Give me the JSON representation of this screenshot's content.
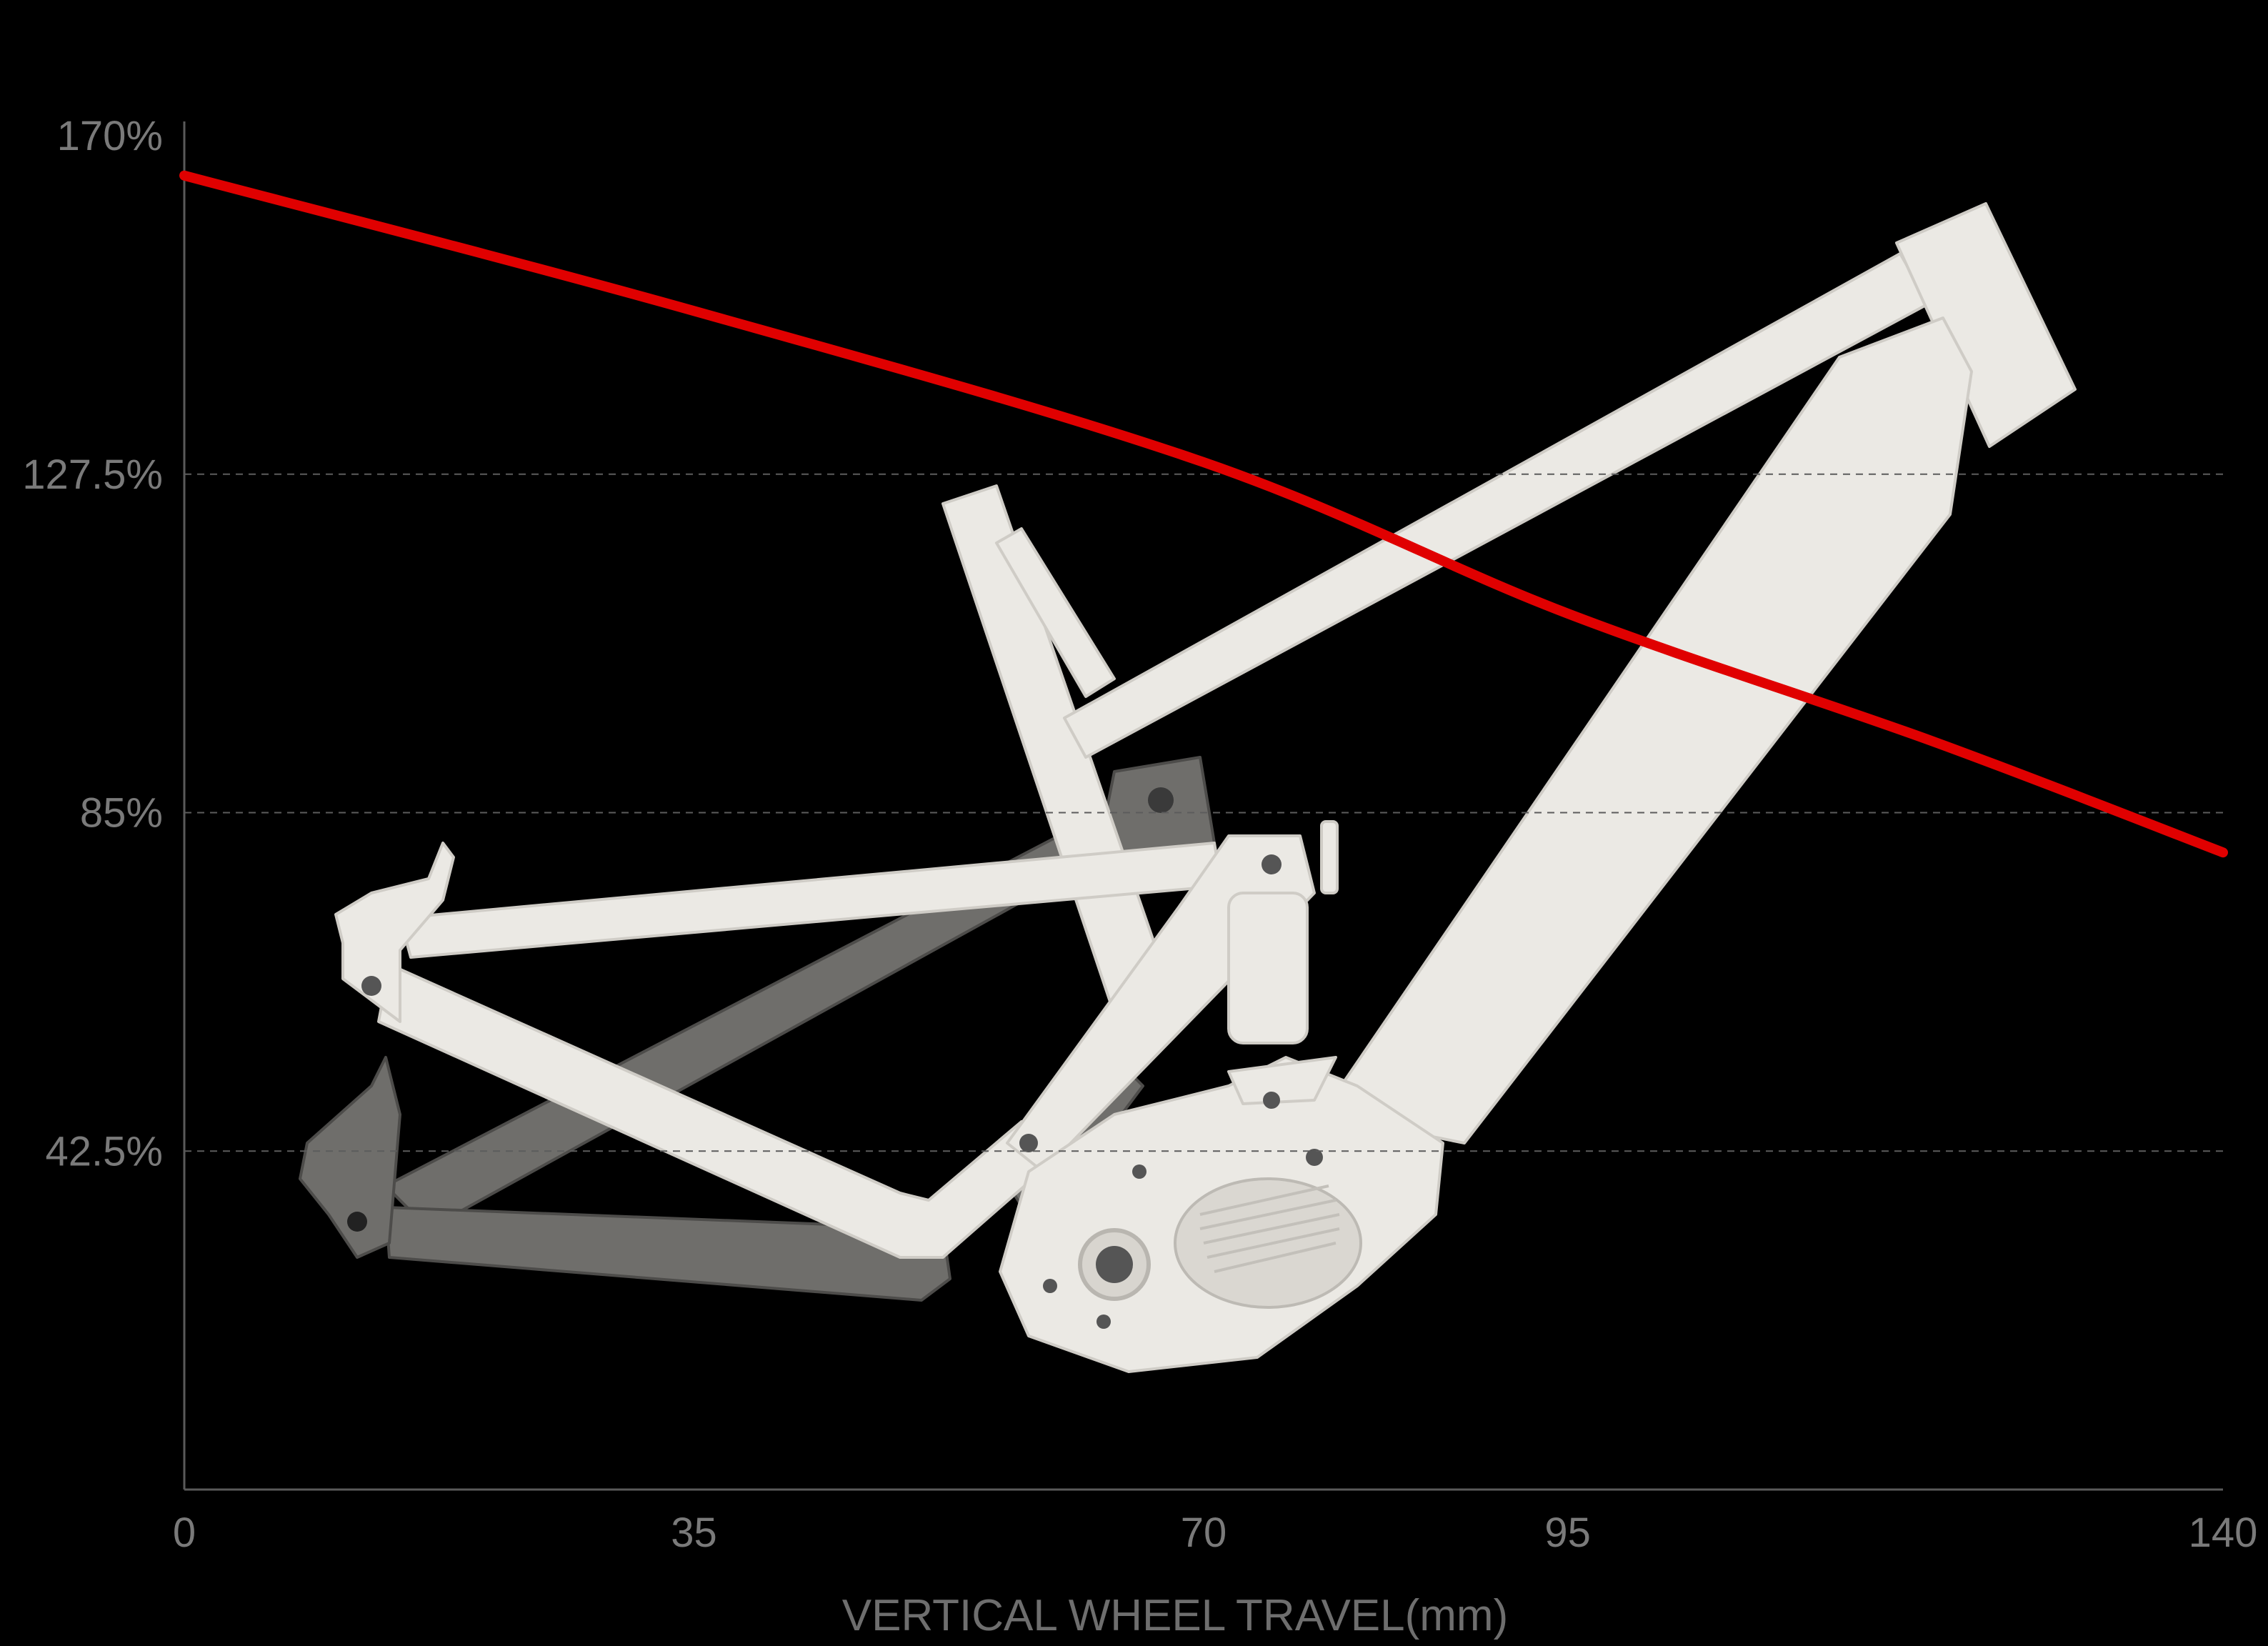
{
  "chart_data": {
    "type": "line",
    "title": "",
    "xlabel": "VERTICAL WHEEL TRAVEL(mm)",
    "ylabel": "",
    "x_ticks": [
      {
        "value": 0,
        "label": "0"
      },
      {
        "value": 35,
        "label": "35"
      },
      {
        "value": 70,
        "label": "70"
      },
      {
        "value": 95,
        "label": "95"
      },
      {
        "value": 140,
        "label": "140"
      }
    ],
    "y_ticks": [
      {
        "value": 42.5,
        "label": "42.5%"
      },
      {
        "value": 85,
        "label": "85%"
      },
      {
        "value": 127.5,
        "label": "127.5%"
      },
      {
        "value": 170,
        "label": "170%"
      }
    ],
    "xlim": [
      0,
      140
    ],
    "ylim": [
      0,
      170
    ],
    "grid": "horizontal-dashed",
    "series": [
      {
        "color": "#e00000",
        "points": [
          {
            "x": 0,
            "y": 165
          },
          {
            "x": 35,
            "y": 148
          },
          {
            "x": 70,
            "y": 129
          },
          {
            "x": 95,
            "y": 110
          },
          {
            "x": 120,
            "y": 94
          },
          {
            "x": 140,
            "y": 80
          }
        ]
      }
    ],
    "background_image": "bike-frame-illustration"
  }
}
